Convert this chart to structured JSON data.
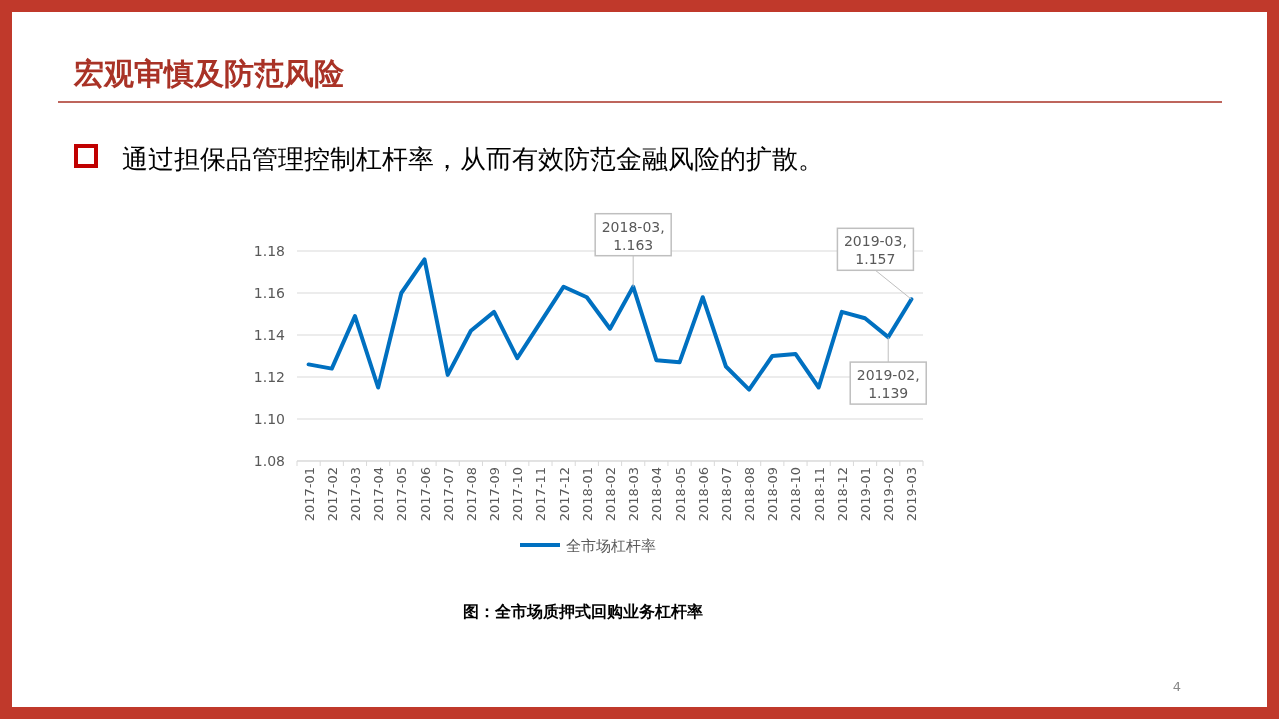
{
  "chart_data": {
    "type": "line",
    "title": "宏观审慎及防范风险",
    "subtitle": "通过担保品管理控制杠杆率，从而有效防范金融风险的扩散。",
    "categories": [
      "2017-01",
      "2017-02",
      "2017-03",
      "2017-04",
      "2017-05",
      "2017-06",
      "2017-07",
      "2017-08",
      "2017-09",
      "2017-10",
      "2017-11",
      "2017-12",
      "2018-01",
      "2018-02",
      "2018-03",
      "2018-04",
      "2018-05",
      "2018-06",
      "2018-07",
      "2018-08",
      "2018-09",
      "2018-10",
      "2018-11",
      "2018-12",
      "2019-01",
      "2019-02",
      "2019-03"
    ],
    "series": [
      {
        "name": "全市场杠杆率",
        "color": "#0070c0",
        "values": [
          1.126,
          1.124,
          1.149,
          1.115,
          1.16,
          1.176,
          1.121,
          1.142,
          1.151,
          1.129,
          1.146,
          1.163,
          1.158,
          1.143,
          1.163,
          1.128,
          1.127,
          1.158,
          1.125,
          1.114,
          1.13,
          1.131,
          1.115,
          1.151,
          1.148,
          1.139,
          1.157
        ]
      }
    ],
    "ylim": [
      1.08,
      1.18
    ],
    "yticks": [
      {
        "value": 1.08,
        "label": "1.08"
      },
      {
        "value": 1.1,
        "label": "1.10"
      },
      {
        "value": 1.12,
        "label": "1.12"
      },
      {
        "value": 1.14,
        "label": "1.14"
      },
      {
        "value": 1.16,
        "label": "1.16"
      },
      {
        "value": 1.18,
        "label": "1.18"
      }
    ],
    "grid": "y",
    "legend": "bottom",
    "annotations": [
      {
        "text": "2018-03, 1.163",
        "x": "2018-03",
        "y": 1.163
      },
      {
        "text": "2019-03, 1.157",
        "x": "2019-03",
        "y": 1.157
      },
      {
        "text": "2019-02, 1.139",
        "x": "2019-02",
        "y": 1.139
      },
      "图：全市场质押式回购业务杠杆率",
      "4"
    ]
  }
}
